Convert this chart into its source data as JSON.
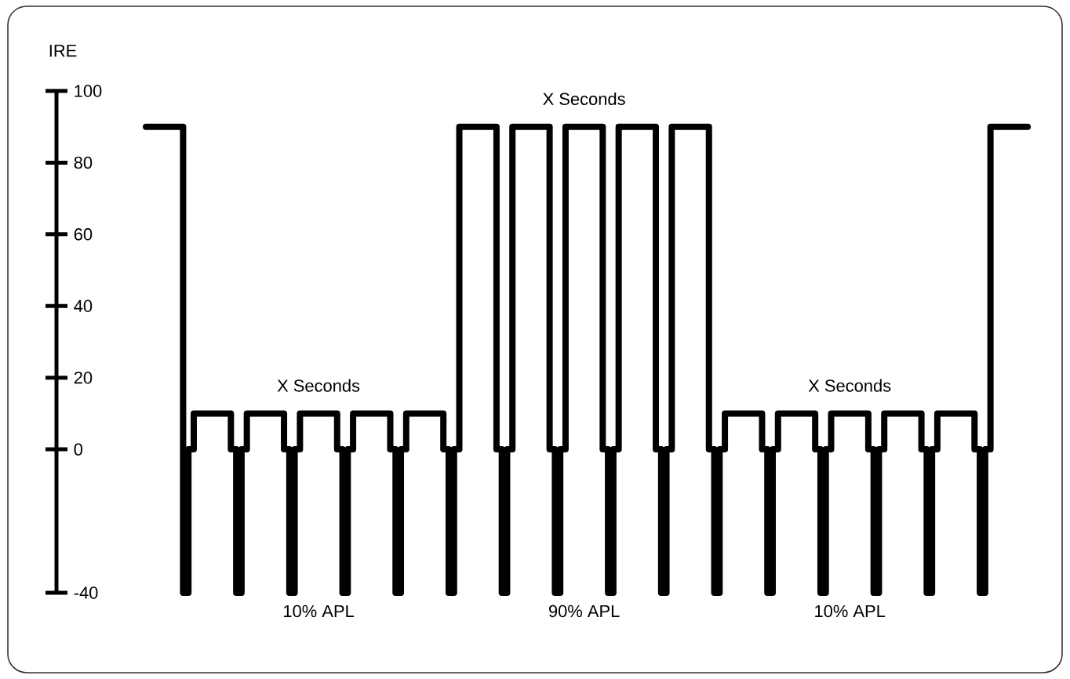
{
  "chart_data": {
    "type": "step",
    "ylabel": "IRE",
    "ylim": [
      -40,
      100
    ],
    "yticks": [
      100,
      80,
      60,
      40,
      20,
      0,
      -40
    ],
    "color": "#000000",
    "marker": "none",
    "line_style": "solid",
    "tick_labels": "y",
    "annotations": [
      "X Seconds",
      "X Seconds",
      "X Seconds",
      "10% APL",
      "90% APL",
      "10% APL"
    ],
    "categories": [
      null,
      null,
      null,
      null,
      null,
      null,
      null,
      null,
      null,
      null,
      null,
      null,
      null,
      null,
      null,
      null,
      null,
      null,
      null,
      null,
      null,
      null,
      null,
      null,
      null,
      null,
      null,
      null,
      null,
      null,
      null,
      null,
      null,
      null,
      null,
      null,
      null,
      null,
      null,
      null,
      null,
      null,
      null,
      null,
      null,
      null,
      null,
      null,
      null,
      null,
      null,
      null,
      null,
      null,
      null,
      null,
      null,
      null,
      null,
      null,
      null,
      null,
      null,
      null,
      null,
      null,
      null,
      null,
      null,
      null,
      null,
      null,
      null,
      null,
      null,
      null,
      null,
      null,
      null,
      null,
      null,
      null,
      null,
      null,
      null,
      null,
      null,
      null,
      null,
      null,
      null,
      null,
      null,
      null,
      null,
      null,
      null,
      null,
      null,
      null,
      null,
      null,
      null,
      null,
      null,
      null,
      null,
      null,
      null,
      null,
      null,
      null,
      null,
      null,
      null,
      null,
      null,
      null,
      null,
      null,
      null,
      null,
      null,
      null,
      null,
      null,
      null,
      null,
      null,
      null,
      null,
      null,
      null,
      null,
      null,
      null,
      null,
      null,
      null,
      null,
      null,
      null,
      null,
      null,
      null,
      null,
      null,
      null,
      null,
      null,
      null,
      null,
      null,
      null,
      null,
      null,
      null,
      null,
      null,
      null,
      null,
      null,
      null,
      null,
      null,
      null
    ],
    "values": [
      90,
      90,
      90,
      90,
      90,
      90,
      90,
      -40,
      0,
      10,
      10,
      10,
      10,
      10,
      10,
      10,
      0,
      -40,
      0,
      10,
      10,
      10,
      10,
      10,
      10,
      10,
      0,
      -40,
      0,
      10,
      10,
      10,
      10,
      10,
      10,
      10,
      0,
      -40,
      0,
      10,
      10,
      10,
      10,
      10,
      10,
      10,
      0,
      -40,
      0,
      10,
      10,
      10,
      10,
      10,
      10,
      10,
      0,
      -40,
      0,
      90,
      90,
      90,
      90,
      90,
      90,
      90,
      0,
      -40,
      0,
      90,
      90,
      90,
      90,
      90,
      90,
      90,
      0,
      -40,
      0,
      90,
      90,
      90,
      90,
      90,
      90,
      90,
      0,
      -40,
      0,
      90,
      90,
      90,
      90,
      90,
      90,
      90,
      0,
      -40,
      0,
      90,
      90,
      90,
      90,
      90,
      90,
      90,
      0,
      -40,
      0,
      10,
      10,
      10,
      10,
      10,
      10,
      10,
      0,
      -40,
      0,
      10,
      10,
      10,
      10,
      10,
      10,
      10,
      0,
      -40,
      0,
      10,
      10,
      10,
      10,
      10,
      10,
      10,
      0,
      -40,
      0,
      10,
      10,
      10,
      10,
      10,
      10,
      10,
      0,
      -40,
      0,
      10,
      10,
      10,
      10,
      10,
      10,
      10,
      0,
      -40,
      0,
      90,
      90,
      90,
      90,
      90,
      90,
      90
    ]
  }
}
